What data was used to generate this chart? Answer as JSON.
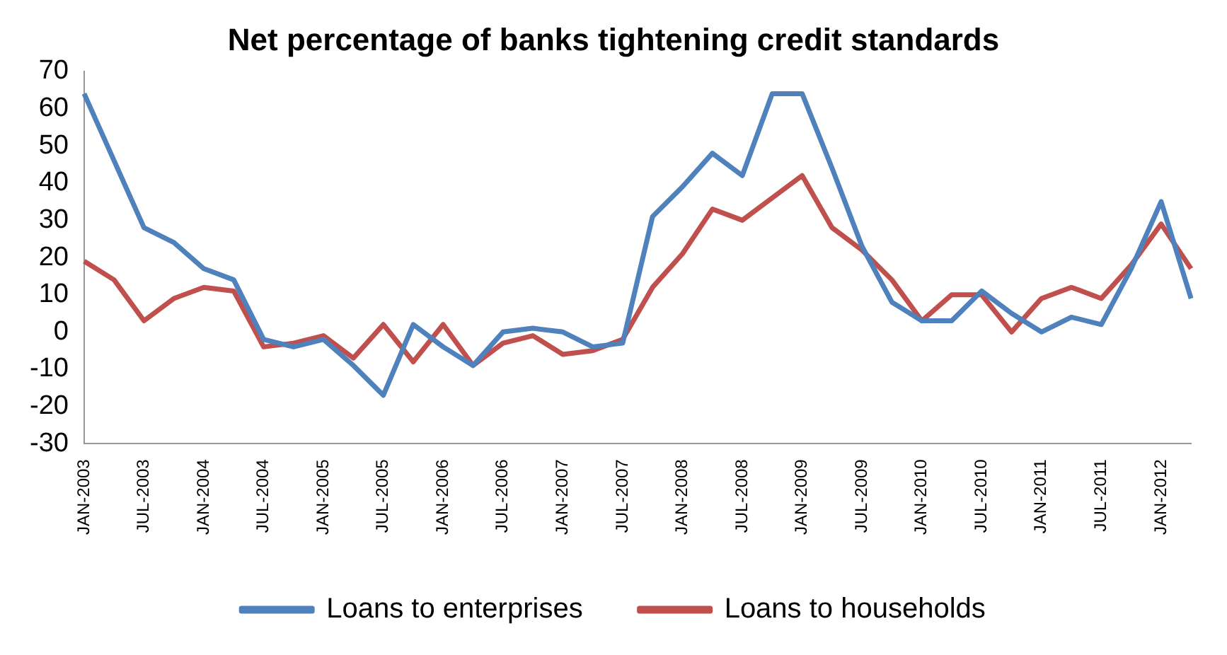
{
  "chart_data": {
    "type": "line",
    "title": "Net percentage of banks tightening credit standards",
    "categories": [
      "JAN-2003",
      null,
      "JUL-2003",
      null,
      "JAN-2004",
      null,
      "JUL-2004",
      null,
      "JAN-2005",
      null,
      "JUL-2005",
      null,
      "JAN-2006",
      null,
      "JUL-2006",
      null,
      "JAN-2007",
      null,
      "JUL-2007",
      null,
      "JAN-2008",
      null,
      "JUL-2008",
      null,
      "JAN-2009",
      null,
      "JUL-2009",
      null,
      "JAN-2010",
      null,
      "JUL-2010",
      null,
      "JAN-2011",
      null,
      "JUL-2011",
      null,
      "JAN-2012",
      null
    ],
    "series": [
      {
        "name": "Loans to enterprises",
        "color": "#4f81bd",
        "values": [
          64,
          46,
          28,
          24,
          17,
          14,
          -2,
          -4,
          -2,
          -9,
          -17,
          2,
          -4,
          -9,
          0,
          1,
          0,
          -4,
          -3,
          31,
          39,
          48,
          42,
          64,
          64,
          44,
          23,
          8,
          3,
          3,
          11,
          5,
          0,
          4,
          2,
          17,
          35,
          9
        ]
      },
      {
        "name": "Loans to households",
        "color": "#c0504d",
        "values": [
          19,
          14,
          3,
          9,
          12,
          11,
          -4,
          -3,
          -1,
          -7,
          2,
          -8,
          2,
          -9,
          -3,
          -1,
          -6,
          -5,
          -2,
          12,
          21,
          33,
          30,
          36,
          42,
          28,
          22,
          14,
          3,
          10,
          10,
          0,
          9,
          12,
          9,
          18,
          29,
          17
        ]
      }
    ],
    "ylim": [
      -30,
      70
    ],
    "yticks": [
      -30,
      -20,
      -10,
      0,
      10,
      20,
      30,
      40,
      50,
      60,
      70
    ],
    "grid": false,
    "legend": "bottom",
    "marker": "none",
    "line_style": "solid"
  }
}
